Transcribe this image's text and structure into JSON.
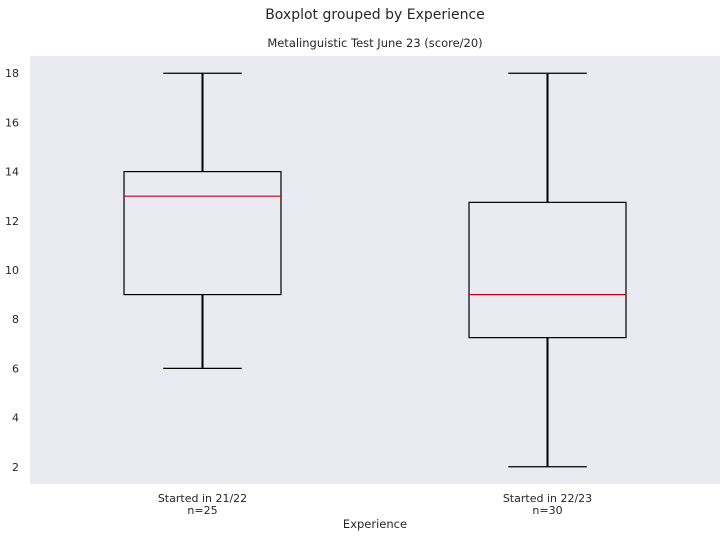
{
  "chart_data": {
    "type": "box",
    "suptitle": "Boxplot grouped by Experience",
    "title": "Metalinguistic Test June 23 (score/20)",
    "xlabel": "Experience",
    "ylabel": "",
    "ylim": [
      1.3,
      18.7
    ],
    "yticks": [
      2,
      4,
      6,
      8,
      10,
      12,
      14,
      16,
      18
    ],
    "grid": false,
    "background": "#eaeaf2",
    "box_color": "#000000",
    "median_color": "#c0001a",
    "groups": [
      {
        "label": "Started in 21/22",
        "n_label": "n=25",
        "whisker_low": 6,
        "q1": 9,
        "median": 13,
        "q3": 14,
        "whisker_high": 18
      },
      {
        "label": "Started in 22/23",
        "n_label": "n=30",
        "whisker_low": 2,
        "q1": 7.25,
        "median": 9,
        "q3": 12.75,
        "whisker_high": 18
      }
    ]
  }
}
